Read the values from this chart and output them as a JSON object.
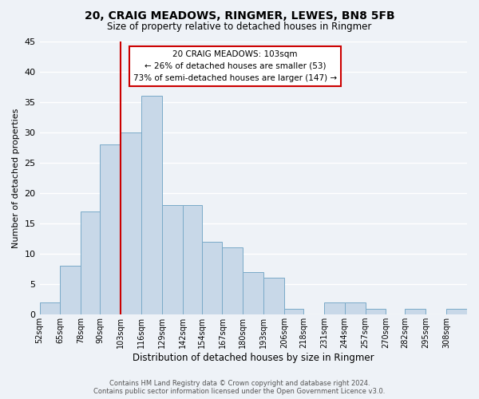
{
  "title": "20, CRAIG MEADOWS, RINGMER, LEWES, BN8 5FB",
  "subtitle": "Size of property relative to detached houses in Ringmer",
  "xlabel": "Distribution of detached houses by size in Ringmer",
  "ylabel": "Number of detached properties",
  "bin_edges": [
    52,
    65,
    78,
    90,
    103,
    116,
    129,
    142,
    154,
    167,
    180,
    193,
    206,
    218,
    231,
    244,
    257,
    270,
    282,
    295,
    308
  ],
  "bin_labels": [
    "52sqm",
    "65sqm",
    "78sqm",
    "90sqm",
    "103sqm",
    "116sqm",
    "129sqm",
    "142sqm",
    "154sqm",
    "167sqm",
    "180sqm",
    "193sqm",
    "206sqm",
    "218sqm",
    "231sqm",
    "244sqm",
    "257sqm",
    "270sqm",
    "282sqm",
    "295sqm",
    "308sqm"
  ],
  "counts": [
    2,
    8,
    17,
    28,
    30,
    36,
    18,
    18,
    12,
    11,
    7,
    6,
    1,
    0,
    2,
    2,
    1,
    0,
    1,
    0,
    1
  ],
  "bar_color": "#c8d8e8",
  "bar_edge_color": "#7aaac8",
  "red_line_x": 103,
  "annotation_lines": [
    "20 CRAIG MEADOWS: 103sqm",
    "← 26% of detached houses are smaller (53)",
    "73% of semi-detached houses are larger (147) →"
  ],
  "annotation_box_color": "#ffffff",
  "annotation_box_edge": "#cc0000",
  "red_line_color": "#cc0000",
  "ylim": [
    0,
    45
  ],
  "yticks": [
    0,
    5,
    10,
    15,
    20,
    25,
    30,
    35,
    40,
    45
  ],
  "footer_line1": "Contains HM Land Registry data © Crown copyright and database right 2024.",
  "footer_line2": "Contains public sector information licensed under the Open Government Licence v3.0.",
  "background_color": "#eef2f7",
  "grid_color": "#ffffff"
}
